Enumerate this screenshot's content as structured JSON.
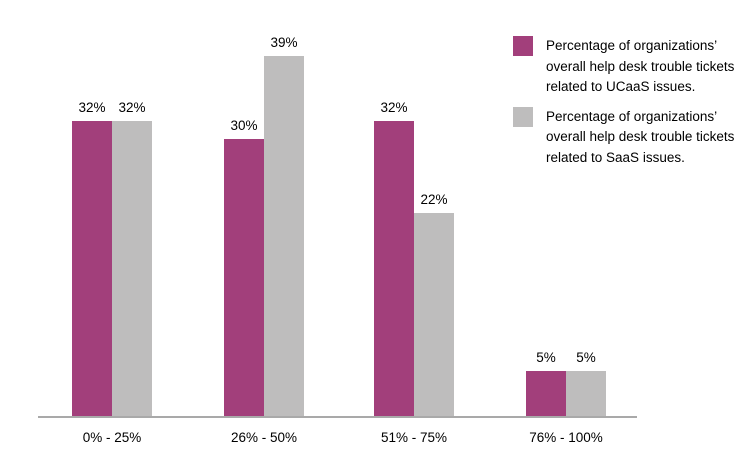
{
  "chart_data": {
    "type": "bar",
    "title": "",
    "xlabel": "",
    "ylabel": "",
    "categories": [
      "0% - 25%",
      "26% - 50%",
      "51% - 75%",
      "76% - 100%"
    ],
    "series": [
      {
        "name": "Percentage of organizations’ overall help desk trouble tickets related to UCaaS issues.",
        "color": "#a23f7b",
        "values": [
          32,
          30,
          32,
          5
        ]
      },
      {
        "name": "Percentage of organizations’ overall help desk trouble tickets related to SaaS issues.",
        "color": "#bebdbd",
        "values": [
          32,
          39,
          22,
          5
        ]
      }
    ],
    "value_suffix": "%",
    "data_labels": true,
    "ylim": [
      0,
      45
    ],
    "grid": false,
    "y_axis_visible": false,
    "legend_position": "top-right",
    "axis_line_color": "#a9a9a9",
    "text_color": "#000000",
    "background_color": "#ffffff"
  }
}
